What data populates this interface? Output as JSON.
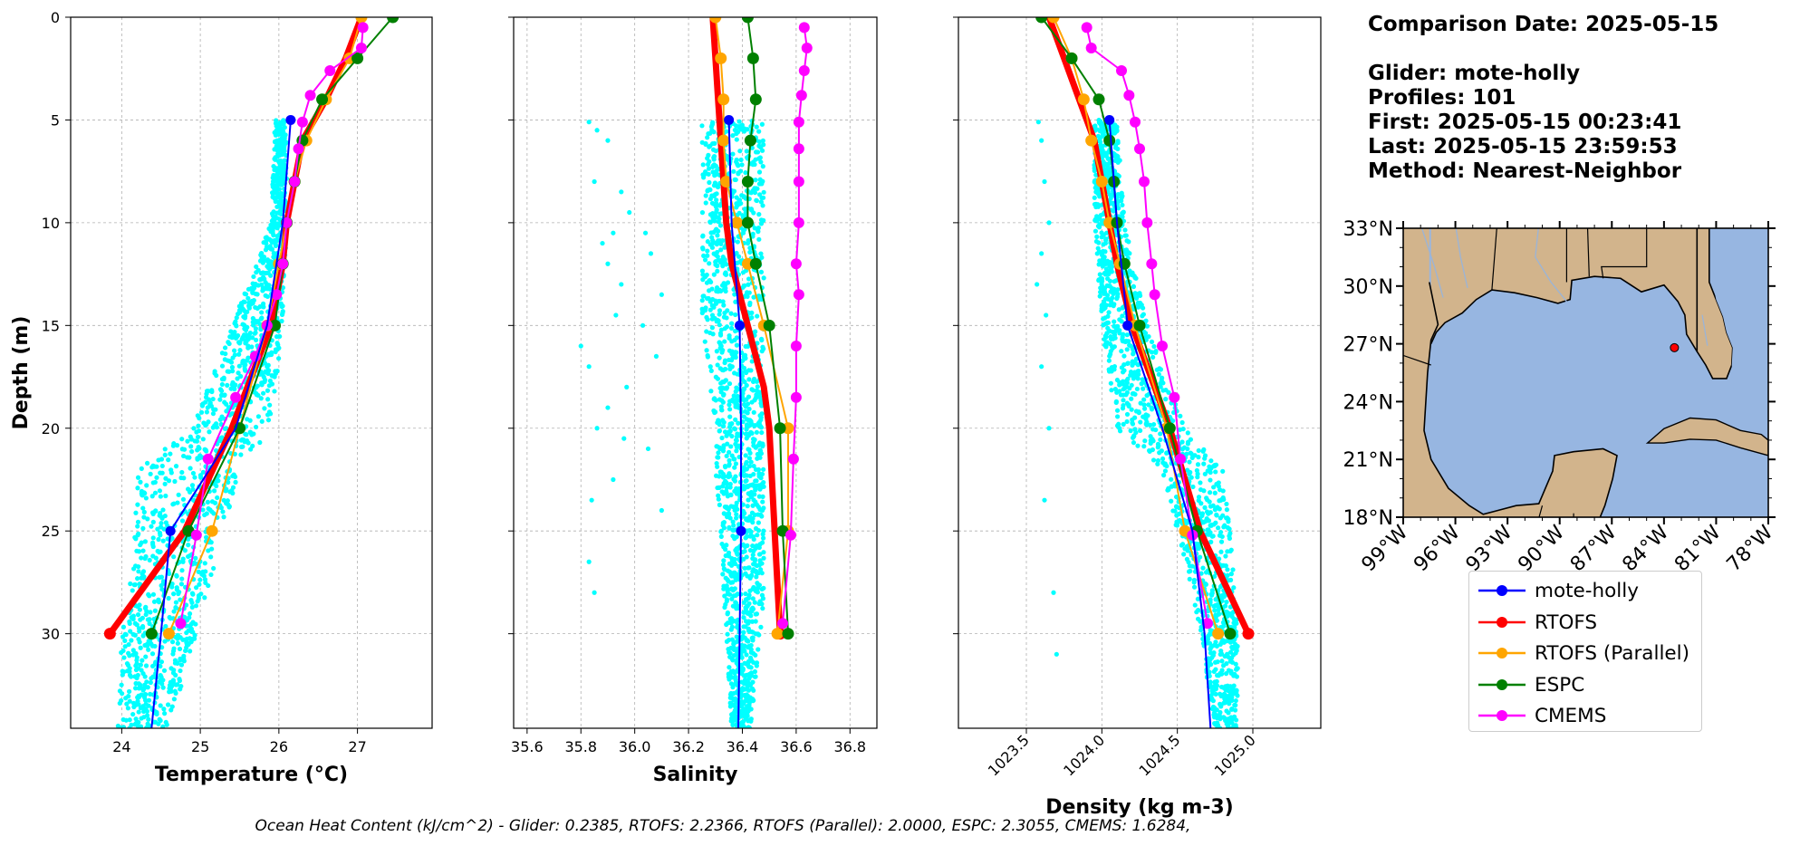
{
  "info": {
    "date_line": "Comparison Date: 2025-05-15",
    "glider_line": "Glider: mote-holly",
    "profiles_line": "Profiles: 101",
    "first_line": "First: 2025-05-15 00:23:41",
    "last_line": "Last: 2025-05-15 23:59:53",
    "method_line": "Method: Nearest-Neighbor"
  },
  "footer": {
    "text": "Ocean Heat Content (kJ/cm^2) - Glider: 0.2385,  RTOFS: 2.2366,  RTOFS (Parallel): 2.0000,  ESPC: 2.3055,  CMEMS: 1.6284,"
  },
  "colors": {
    "glider": "#0000ff",
    "rtofs": "#ff0000",
    "rtofs_parallel": "#ffa500",
    "espc": "#008000",
    "cmems": "#ff00ff",
    "glider_scatter": "#00ffff",
    "ocean": "#97b6e1",
    "land": "#d2b48c"
  },
  "legend": [
    {
      "key": "glider",
      "label": "mote-holly",
      "color": "#0000ff"
    },
    {
      "key": "rtofs",
      "label": "RTOFS",
      "color": "#ff0000"
    },
    {
      "key": "rtofs_parallel",
      "label": "RTOFS (Parallel)",
      "color": "#ffa500"
    },
    {
      "key": "espc",
      "label": "ESPC",
      "color": "#008000"
    },
    {
      "key": "cmems",
      "label": "CMEMS",
      "color": "#ff00ff"
    }
  ],
  "chart_data": [
    {
      "type": "line",
      "xlabel": "Temperature (°C)",
      "ylabel": "Depth (m)",
      "xlim": [
        23.35,
        27.95
      ],
      "ylim": [
        34.6,
        0
      ],
      "xticks": [
        24,
        25,
        26,
        27
      ],
      "yticks": [
        0,
        5,
        10,
        15,
        20,
        25,
        30
      ],
      "grid": true,
      "scatter_band": {
        "name": "mote-holly profiles",
        "depth": [
          5,
          10,
          15,
          20,
          22,
          25,
          28,
          30,
          34.6
        ],
        "min": [
          25.95,
          25.9,
          25.4,
          24.9,
          24.2,
          24.15,
          24.1,
          24.0,
          23.95
        ],
        "max": [
          26.1,
          26.1,
          26.05,
          25.9,
          25.5,
          25.3,
          25.1,
          24.95,
          24.6
        ]
      },
      "series": [
        {
          "key": "glider",
          "depth": [
            5,
            10,
            15,
            20,
            25,
            30,
            34.6
          ],
          "values": [
            26.15,
            26.05,
            25.85,
            25.45,
            24.62,
            24.5,
            24.38
          ],
          "marker_depths": [
            5,
            25
          ]
        },
        {
          "key": "rtofs",
          "depth": [
            0,
            2,
            4,
            6,
            8,
            10,
            12,
            15,
            20,
            25,
            30
          ],
          "values": [
            27.05,
            26.85,
            26.6,
            26.3,
            26.2,
            26.1,
            26.05,
            25.9,
            25.4,
            24.8,
            23.85
          ],
          "marker_depths": [
            30
          ]
        },
        {
          "key": "rtofs_parallel",
          "depth": [
            0,
            2,
            4,
            6,
            8,
            10,
            12,
            15,
            20,
            25,
            30
          ],
          "values": [
            27.05,
            26.9,
            26.6,
            26.35,
            26.2,
            26.1,
            26.0,
            25.85,
            25.5,
            25.15,
            24.6
          ],
          "marker_depths": [
            0,
            2,
            4,
            6,
            8,
            10,
            12,
            15,
            20,
            25,
            30
          ]
        },
        {
          "key": "espc",
          "depth": [
            0,
            2,
            4,
            6,
            8,
            10,
            12,
            15,
            20,
            25,
            30
          ],
          "values": [
            27.45,
            27.0,
            26.55,
            26.3,
            26.2,
            26.1,
            26.05,
            25.95,
            25.5,
            24.85,
            24.38
          ],
          "marker_depths": [
            0,
            2,
            4,
            6,
            8,
            10,
            12,
            15,
            20,
            25,
            30
          ]
        },
        {
          "key": "cmems",
          "depth": [
            0.5,
            1.5,
            2.6,
            3.8,
            5.1,
            6.4,
            8,
            10,
            12,
            13.5,
            15,
            16.5,
            18.5,
            21.5,
            25.2,
            29.5
          ],
          "values": [
            27.07,
            27.05,
            26.65,
            26.4,
            26.3,
            26.25,
            26.2,
            26.1,
            26.05,
            25.97,
            25.85,
            25.7,
            25.45,
            25.1,
            24.95,
            24.75
          ],
          "marker_depths": [
            0.5,
            1.5,
            2.6,
            3.8,
            5.1,
            6.4,
            8,
            10,
            12,
            13.5,
            15,
            16.5,
            18.5,
            21.5,
            25.2,
            29.5
          ]
        }
      ]
    },
    {
      "type": "line",
      "xlabel": "Salinity",
      "ylabel": "",
      "xlim": [
        35.55,
        36.9
      ],
      "ylim": [
        34.6,
        0
      ],
      "xticks": [
        35.6,
        35.8,
        36.0,
        36.2,
        36.4,
        36.6,
        36.8
      ],
      "yticks": [
        0,
        5,
        10,
        15,
        20,
        25,
        30
      ],
      "grid": true,
      "scatter_band": {
        "name": "mote-holly profiles",
        "depth": [
          5,
          10,
          15,
          20,
          22,
          25,
          28,
          30,
          34.6
        ],
        "min": [
          36.25,
          36.25,
          36.25,
          36.3,
          36.3,
          36.32,
          36.33,
          36.34,
          36.36
        ],
        "max": [
          36.48,
          36.48,
          36.48,
          36.48,
          36.48,
          36.48,
          36.48,
          36.47,
          36.43
        ]
      },
      "outliers": {
        "x": [
          35.83,
          35.86,
          35.9,
          35.85,
          35.95,
          35.98,
          35.92,
          35.88,
          36.04,
          36.06,
          35.9,
          35.95,
          36.1,
          35.93,
          36.03,
          35.8,
          35.83,
          36.08,
          35.97,
          35.9,
          35.86,
          35.96,
          36.05,
          35.92,
          35.84,
          36.1,
          35.83,
          35.85
        ],
        "y": [
          5.1,
          5.5,
          6.0,
          8.0,
          8.5,
          9.5,
          10.5,
          11.0,
          10.5,
          11.5,
          12.0,
          13.0,
          13.5,
          14.5,
          15.0,
          16.0,
          17.0,
          16.5,
          18.0,
          19.0,
          20.0,
          20.5,
          21.0,
          22.5,
          23.5,
          24.0,
          26.5,
          28.0
        ]
      },
      "series": [
        {
          "key": "glider",
          "depth": [
            5,
            10,
            15,
            20,
            25,
            30,
            34.6
          ],
          "values": [
            36.35,
            36.36,
            36.39,
            36.395,
            36.395,
            36.39,
            36.385
          ],
          "marker_depths": [
            5,
            15,
            25
          ]
        },
        {
          "key": "rtofs",
          "depth": [
            0,
            2,
            4,
            6,
            8,
            10,
            12,
            15,
            18,
            20,
            25,
            30
          ],
          "values": [
            36.29,
            36.3,
            36.31,
            36.32,
            36.33,
            36.34,
            36.36,
            36.42,
            36.48,
            36.5,
            36.52,
            36.54
          ],
          "marker_depths": [
            30
          ]
        },
        {
          "key": "rtofs_parallel",
          "depth": [
            0,
            2,
            4,
            6,
            8,
            10,
            12,
            15,
            20,
            25,
            30
          ],
          "values": [
            36.3,
            36.32,
            36.33,
            36.33,
            36.34,
            36.38,
            36.42,
            36.48,
            36.57,
            36.57,
            36.53
          ],
          "marker_depths": [
            0,
            2,
            4,
            6,
            8,
            10,
            12,
            15,
            20,
            25,
            30
          ]
        },
        {
          "key": "espc",
          "depth": [
            0,
            2,
            4,
            6,
            8,
            10,
            12,
            15,
            20,
            25,
            30
          ],
          "values": [
            36.42,
            36.44,
            36.45,
            36.43,
            36.42,
            36.42,
            36.45,
            36.5,
            36.54,
            36.55,
            36.57
          ],
          "marker_depths": [
            0,
            2,
            4,
            6,
            8,
            10,
            12,
            15,
            20,
            25,
            30
          ]
        },
        {
          "key": "cmems",
          "depth": [
            0.5,
            1.5,
            2.6,
            3.8,
            5.1,
            6.4,
            8,
            10,
            12,
            13.5,
            16,
            18.5,
            21.5,
            25.2,
            29.5
          ],
          "values": [
            36.63,
            36.64,
            36.63,
            36.62,
            36.61,
            36.61,
            36.61,
            36.61,
            36.6,
            36.61,
            36.6,
            36.6,
            36.59,
            36.58,
            36.55
          ],
          "marker_depths": [
            0.5,
            1.5,
            2.6,
            3.8,
            5.1,
            6.4,
            8,
            10,
            12,
            13.5,
            16,
            18.5,
            21.5,
            25.2,
            29.5
          ]
        }
      ]
    },
    {
      "type": "line",
      "xlabel": "Density (kg m-3)",
      "ylabel": "",
      "xlim": [
        1023.05,
        1025.45
      ],
      "ylim": [
        34.6,
        0
      ],
      "xticks": [
        1023.5,
        1024.0,
        1024.5,
        1025.0
      ],
      "yticks": [
        0,
        5,
        10,
        15,
        20,
        25,
        30
      ],
      "grid": true,
      "scatter_band": {
        "name": "mote-holly profiles",
        "depth": [
          5,
          10,
          15,
          20,
          22,
          25,
          28,
          30,
          34.6
        ],
        "min": [
          1023.95,
          1023.95,
          1024.0,
          1024.1,
          1024.4,
          1024.5,
          1024.6,
          1024.65,
          1024.75
        ],
        "max": [
          1024.1,
          1024.15,
          1024.3,
          1024.55,
          1024.8,
          1024.85,
          1024.88,
          1024.9,
          1024.9
        ]
      },
      "outliers": {
        "x": [
          1023.58,
          1023.6,
          1023.62,
          1023.65,
          1023.6,
          1023.57,
          1023.63,
          1023.6,
          1023.65,
          1023.62,
          1023.68,
          1023.7
        ],
        "y": [
          5.1,
          6.0,
          8.0,
          10.0,
          11.5,
          13.0,
          14.5,
          17.0,
          20.0,
          23.5,
          28.0,
          31.0
        ]
      },
      "series": [
        {
          "key": "glider",
          "depth": [
            5,
            10,
            15,
            20,
            25,
            30,
            34.6
          ],
          "values": [
            1024.05,
            1024.1,
            1024.17,
            1024.4,
            1024.6,
            1024.68,
            1024.72
          ],
          "marker_depths": [
            5,
            15
          ]
        },
        {
          "key": "rtofs",
          "depth": [
            0,
            2,
            4,
            6,
            8,
            10,
            12,
            15,
            20,
            25,
            30
          ],
          "values": [
            1023.65,
            1023.75,
            1023.85,
            1023.95,
            1024.0,
            1024.05,
            1024.1,
            1024.2,
            1024.45,
            1024.65,
            1024.97
          ],
          "marker_depths": [
            30
          ]
        },
        {
          "key": "rtofs_parallel",
          "depth": [
            0,
            2,
            4,
            6,
            8,
            10,
            12,
            15,
            20,
            25,
            30
          ],
          "values": [
            1023.68,
            1023.8,
            1023.88,
            1023.93,
            1024.0,
            1024.05,
            1024.12,
            1024.22,
            1024.43,
            1024.55,
            1024.77
          ],
          "marker_depths": [
            0,
            2,
            4,
            6,
            8,
            10,
            12,
            15,
            20,
            25,
            30
          ]
        },
        {
          "key": "espc",
          "depth": [
            0,
            2,
            4,
            6,
            8,
            10,
            12,
            15,
            20,
            25,
            30
          ],
          "values": [
            1023.6,
            1023.8,
            1023.98,
            1024.05,
            1024.08,
            1024.1,
            1024.15,
            1024.25,
            1024.45,
            1024.63,
            1024.85
          ],
          "marker_depths": [
            0,
            2,
            4,
            6,
            8,
            10,
            12,
            15,
            20,
            25,
            30
          ]
        },
        {
          "key": "cmems",
          "depth": [
            0.5,
            1.5,
            2.6,
            3.8,
            5.1,
            6.4,
            8,
            10,
            12,
            13.5,
            16,
            18.5,
            21.5,
            25.2,
            29.5
          ],
          "values": [
            1023.9,
            1023.93,
            1024.13,
            1024.18,
            1024.22,
            1024.25,
            1024.28,
            1024.3,
            1024.33,
            1024.35,
            1024.4,
            1024.48,
            1024.52,
            1024.6,
            1024.7
          ],
          "marker_depths": [
            0.5,
            1.5,
            2.6,
            3.8,
            5.1,
            6.4,
            8,
            10,
            12,
            13.5,
            16,
            18.5,
            21.5,
            25.2,
            29.5
          ]
        }
      ]
    },
    {
      "type": "map",
      "region": "Gulf of Mexico",
      "lon_range": [
        -99,
        -78
      ],
      "lat_range": [
        18,
        33
      ],
      "lon_ticks": [
        "99°W",
        "96°W",
        "93°W",
        "90°W",
        "87°W",
        "84°W",
        "81°W",
        "78°W"
      ],
      "lat_ticks": [
        "33°N",
        "30°N",
        "27°N",
        "24°N",
        "21°N",
        "18°N"
      ],
      "glider_location": {
        "lon": -83.4,
        "lat": 26.8
      }
    }
  ]
}
